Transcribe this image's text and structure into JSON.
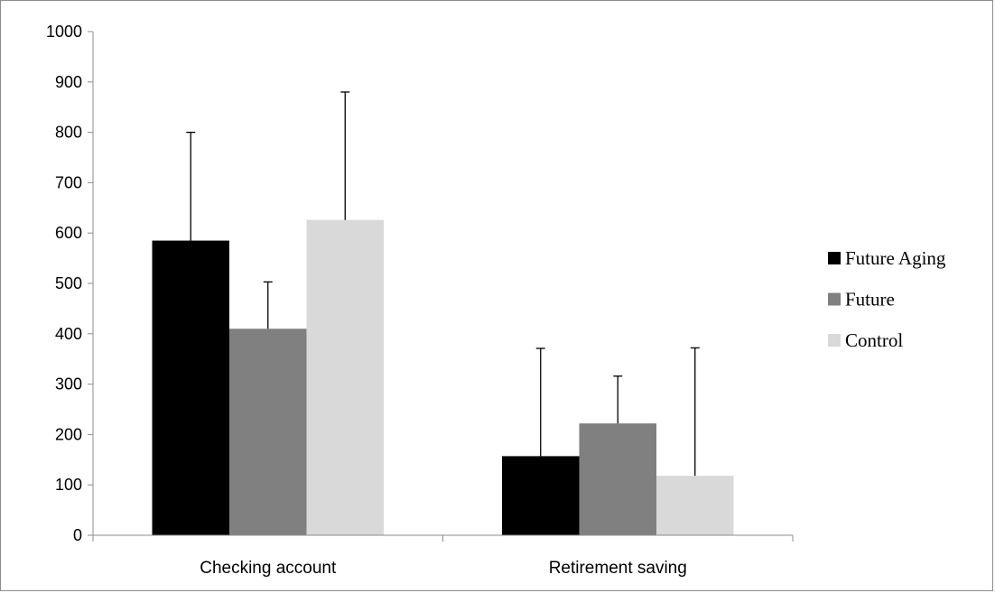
{
  "chart_data": {
    "type": "bar",
    "categories": [
      "Checking account",
      "Retirement saving"
    ],
    "series": [
      {
        "name": "Future Aging",
        "color": "#000000",
        "values": [
          585,
          157
        ],
        "error_upper": [
          800,
          371
        ]
      },
      {
        "name": "Future",
        "color": "#808080",
        "values": [
          410,
          222
        ],
        "error_upper": [
          503,
          316
        ]
      },
      {
        "name": "Control",
        "color": "#d9d9d9",
        "values": [
          626,
          118
        ],
        "error_upper": [
          880,
          372
        ]
      }
    ],
    "ylim": [
      0,
      1000
    ],
    "yticks": [
      0,
      100,
      200,
      300,
      400,
      500,
      600,
      700,
      800,
      900,
      1000
    ],
    "title": "",
    "xlabel": "",
    "ylabel": "",
    "grid": false,
    "legend_position": "right"
  }
}
